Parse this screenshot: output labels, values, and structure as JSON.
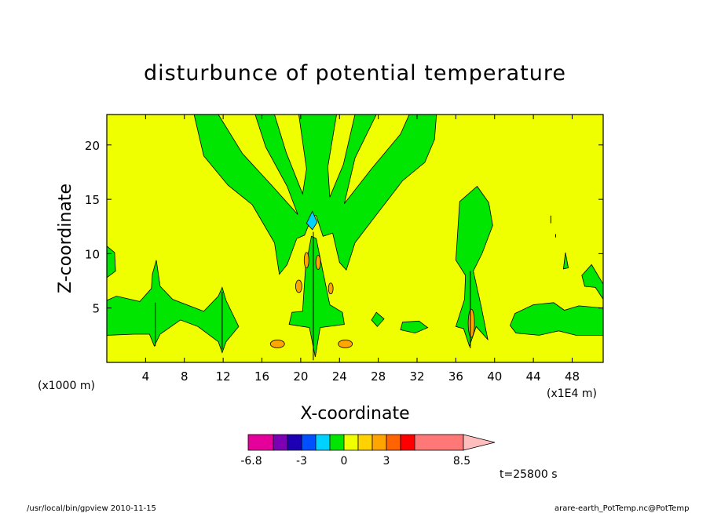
{
  "chart_data": {
    "type": "heatmap",
    "title": "disturbunce of potential temperature",
    "xlabel": "X-coordinate",
    "ylabel": "Z-coordinate",
    "x_unit_left": "(x1000 m)",
    "x_unit_right": "(x1E4 m)",
    "xlim": [
      0,
      51.2
    ],
    "ylim": [
      0,
      22.8
    ],
    "x_ticks": [
      4,
      8,
      12,
      16,
      20,
      24,
      28,
      32,
      36,
      40,
      44,
      48
    ],
    "y_ticks": [
      5,
      10,
      15,
      20
    ],
    "background_level_color": "#f0ff00",
    "colorbar": {
      "colors": [
        "#e6009b",
        "#7c00b4",
        "#1e00b4",
        "#0050ff",
        "#00d2ff",
        "#00e600",
        "#f0ff00",
        "#ffd200",
        "#ffa500",
        "#ff6400",
        "#ff0000",
        "#ff7878"
      ],
      "extend_color": "#ffbebe",
      "tick_labels": [
        "-6.8",
        "-3",
        "0",
        "3",
        "8.5"
      ]
    },
    "time_label": "t=25800 s"
  },
  "footer": {
    "left": "/usr/local/bin/gpview   2010-11-15",
    "right": "arare-earth_PotTemp.nc@PotTemp"
  },
  "colors": {
    "field": "#f0ff00",
    "positive_small": "#00e600",
    "negative_small": "#ffd200",
    "negative_medium": "#ffa500",
    "cyan": "#00d2ff",
    "frame": "#000000"
  }
}
